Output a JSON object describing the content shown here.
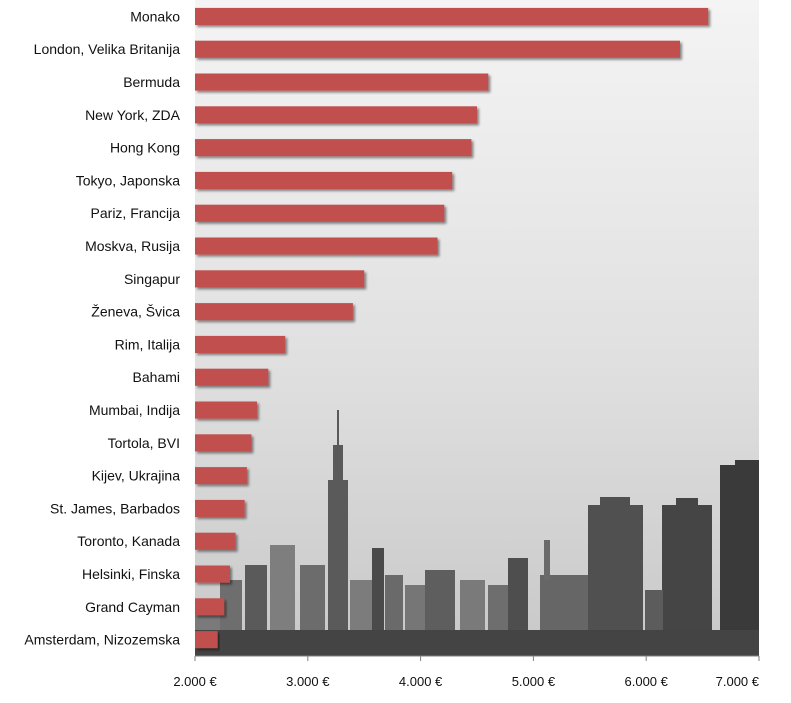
{
  "chart_data": {
    "type": "bar",
    "orientation": "horizontal",
    "categories": [
      "Monako",
      "London, Velika Britanija",
      "Bermuda",
      "New York, ZDA",
      "Hong Kong",
      "Tokyo, Japonska",
      "Pariz, Francija",
      "Moskva, Rusija",
      "Singapur",
      "Ženeva, Švica",
      "Rim, Italija",
      "Bahami",
      "Mumbai, Indija",
      "Tortola, BVI",
      "Kijev, Ukrajina",
      "St. James, Barbados",
      "Toronto, Kanada",
      "Helsinki, Finska",
      "Grand Cayman",
      "Amsterdam, Nizozemska"
    ],
    "values": [
      6550,
      6300,
      4600,
      4500,
      4450,
      4280,
      4210,
      4150,
      3500,
      3400,
      2800,
      2650,
      2550,
      2500,
      2460,
      2440,
      2360,
      2310,
      2260,
      2200
    ],
    "xlim": [
      2000,
      7000
    ],
    "xticks": [
      2000,
      3000,
      4000,
      5000,
      6000,
      7000
    ],
    "xtick_labels": [
      "2.000 €",
      "3.000 €",
      "4.000 €",
      "5.000 €",
      "6.000 €",
      "7.000 €"
    ],
    "title": "",
    "xlabel": "",
    "ylabel": "",
    "grid": false,
    "legend": "none",
    "background": "grayscale city skyline photo",
    "colors": {
      "bar": "#c0504d",
      "axis": "#7f7f7f",
      "text": "#111111"
    }
  }
}
